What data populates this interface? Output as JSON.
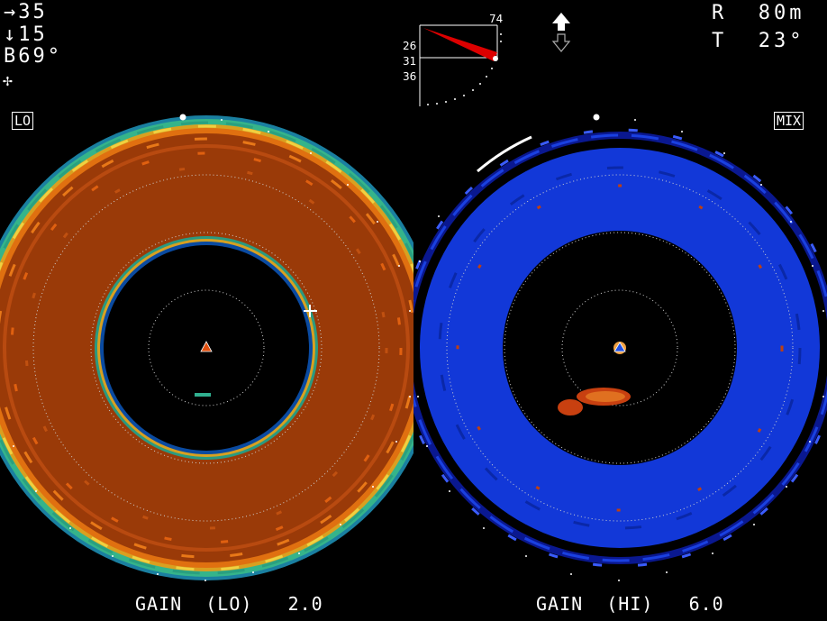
{
  "hud": {
    "bearing_arrow": "→",
    "bearing_value": "35",
    "depth_arrow": "↓",
    "depth_value": "15",
    "tilt_prefix": "B",
    "tilt_value": "69°",
    "cursor_symbol": "✢"
  },
  "tilt_indicator": {
    "top_label": "74",
    "labels": [
      "26",
      "31",
      "36"
    ],
    "beam_color": "#dd0000"
  },
  "ship_direction_icon": "up-arrow-icon",
  "range": {
    "label": "R",
    "value": "80m"
  },
  "tilt": {
    "label": "T",
    "value": "23°"
  },
  "left_panel": {
    "mode_label": "LO",
    "gain_label": "GAIN",
    "gain_mode": "(LO)",
    "gain_value": "2.0",
    "palette": {
      "main": "#9a3a08",
      "edge1": "#e07a10",
      "edge2": "#38b08a",
      "edge3": "#0060c0"
    }
  },
  "right_panel": {
    "mode_label": "MIX",
    "gain_label": "GAIN",
    "gain_mode": "(HI)",
    "gain_value": "6.0",
    "palette": {
      "main": "#1030d0",
      "edge1": "#0030b0",
      "edge2": "#3080ff",
      "school": "#c84010"
    }
  }
}
